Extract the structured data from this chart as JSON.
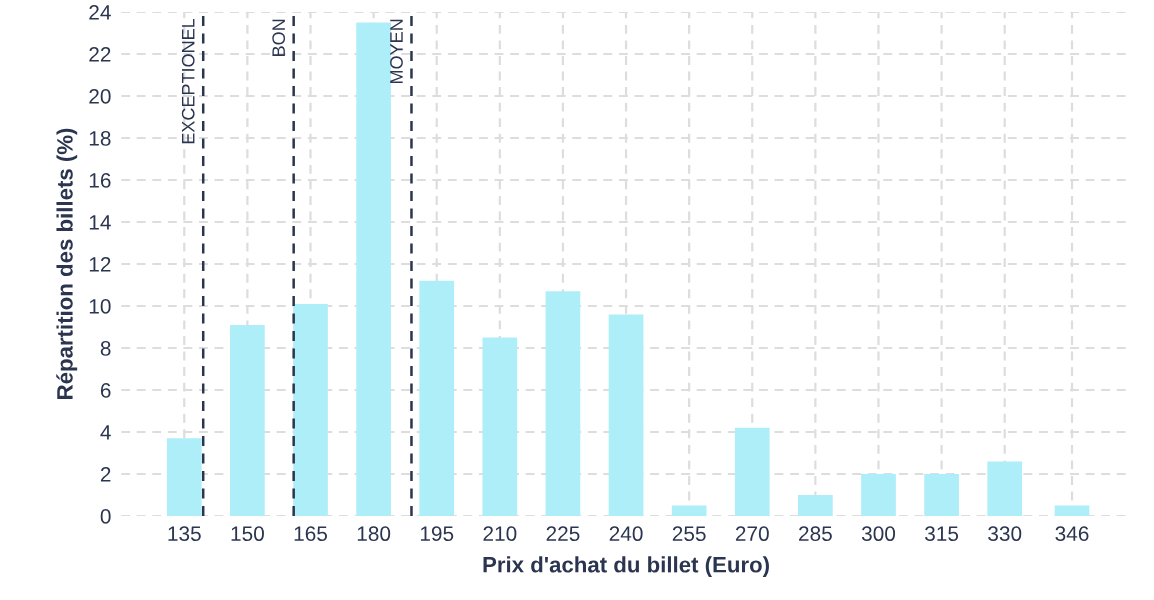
{
  "chart_data": {
    "type": "bar",
    "xlabel": "Prix d'achat du billet (Euro)",
    "ylabel": "Répartition des billets (%)",
    "x": [
      135,
      150,
      165,
      180,
      195,
      210,
      225,
      240,
      255,
      270,
      285,
      300,
      315,
      330,
      346
    ],
    "values": [
      3.7,
      9.1,
      10.1,
      23.5,
      11.2,
      8.5,
      10.7,
      9.6,
      0.5,
      4.2,
      1.0,
      2.0,
      2.0,
      2.6,
      0.5
    ],
    "color": "#aeeef8",
    "xlim": [
      120,
      360
    ],
    "xticks": [
      135,
      150,
      165,
      180,
      195,
      210,
      225,
      240,
      255,
      270,
      285,
      300,
      315,
      330,
      346
    ],
    "ylim": [
      0,
      24
    ],
    "yticks": [
      0,
      2,
      4,
      6,
      8,
      10,
      12,
      14,
      16,
      18,
      20,
      22,
      24
    ],
    "grid": true,
    "ref_lines": [
      {
        "axis": "x",
        "value": 139.5,
        "label": "EXCEPTIONEL",
        "color": "#2b3550",
        "line_style": "dashed"
      },
      {
        "axis": "x",
        "value": 161,
        "label": "BON",
        "color": "#2b3550",
        "line_style": "dashed"
      },
      {
        "axis": "x",
        "value": 189,
        "label": "MOYEN",
        "color": "#2b3550",
        "line_style": "dashed"
      }
    ]
  }
}
